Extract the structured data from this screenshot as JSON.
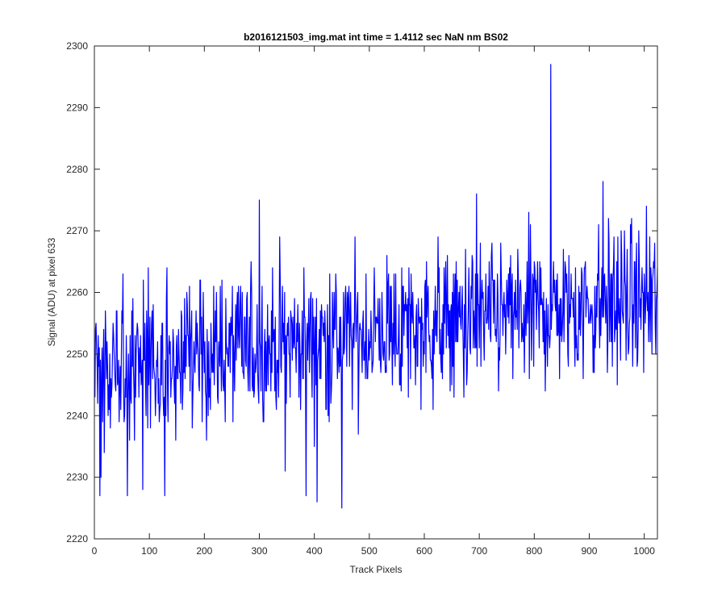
{
  "chart_data": {
    "type": "line",
    "title": "b2016121503_img.mat int time = 1.4112 sec  NaN nm BS02",
    "xlabel": "Track Pixels",
    "ylabel": "Signal (ADU) at pixel 633",
    "xlim": [
      0,
      1024
    ],
    "ylim": [
      2220,
      2300
    ],
    "xticks": [
      0,
      100,
      200,
      300,
      400,
      500,
      600,
      700,
      800,
      900,
      1000
    ],
    "yticks": [
      2220,
      2230,
      2240,
      2250,
      2260,
      2270,
      2280,
      2290,
      2300
    ],
    "xtick_labels": [
      "0",
      "100",
      "200",
      "300",
      "400",
      "500",
      "600",
      "700",
      "800",
      "900",
      "1000"
    ],
    "ytick_labels": [
      "2220",
      "2230",
      "2240",
      "2250",
      "2260",
      "2270",
      "2280",
      "2290",
      "2300"
    ],
    "grid": false,
    "box": true,
    "series": [
      {
        "color": "#0000ff",
        "x_start": 1,
        "x_step": 1,
        "y_mean_start": 2248,
        "y_mean_end": 2259,
        "y_noise": 6,
        "y_min": 2225,
        "y_max": 2297,
        "seed": 633,
        "extremes": [
          {
            "x": 10,
            "y": 2227
          },
          {
            "x": 12,
            "y": 2230
          },
          {
            "x": 60,
            "y": 2227
          },
          {
            "x": 88,
            "y": 2228
          },
          {
            "x": 128,
            "y": 2227
          },
          {
            "x": 300,
            "y": 2275
          },
          {
            "x": 347,
            "y": 2231
          },
          {
            "x": 385,
            "y": 2227
          },
          {
            "x": 405,
            "y": 2226
          },
          {
            "x": 450,
            "y": 2225
          },
          {
            "x": 695,
            "y": 2276
          },
          {
            "x": 830,
            "y": 2297
          },
          {
            "x": 925,
            "y": 2278
          }
        ]
      }
    ]
  },
  "colors": {
    "line": "#0000ff",
    "axes": "#262626",
    "background": "#ffffff"
  }
}
